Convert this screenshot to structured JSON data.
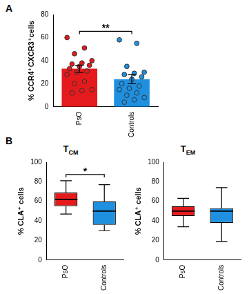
{
  "chart_data": [
    {
      "type": "bar",
      "panel_label": "A",
      "y_label": "% CCR4⁺CXCR3⁺cells",
      "categories": [
        "PsO",
        "Controls"
      ],
      "values": [
        33,
        24
      ],
      "errors": [
        3,
        4
      ],
      "points": [
        [
          60,
          51,
          46,
          40,
          38,
          37,
          36,
          35,
          33,
          31,
          30,
          28,
          22,
          20,
          15,
          14,
          12
        ],
        [
          58,
          55,
          35,
          30,
          29,
          28,
          26,
          24,
          20,
          18,
          16,
          15,
          12,
          10,
          8,
          6,
          4
        ]
      ],
      "colors": [
        "#e41a1c",
        "#1f8fe0"
      ],
      "ylim": [
        0,
        80
      ],
      "yticks": [
        0,
        20,
        40,
        60,
        80
      ],
      "grid": false,
      "annotations": [
        {
          "text": "**",
          "between": [
            "PsO",
            "Controls"
          ]
        }
      ]
    },
    {
      "type": "box",
      "panel_label": "B",
      "title": "TCM",
      "y_label": "% CLA⁺ cells",
      "categories": [
        "PsO",
        "Controls"
      ],
      "boxes": [
        {
          "min": 47,
          "q1": 55,
          "median": 62,
          "q3": 69,
          "max": 81
        },
        {
          "min": 30,
          "q1": 36,
          "median": 50,
          "q3": 60,
          "max": 77
        }
      ],
      "colors": [
        "#e41a1c",
        "#1f8fe0"
      ],
      "ylim": [
        0,
        100
      ],
      "yticks": [
        0,
        20,
        40,
        60,
        80,
        100
      ],
      "grid": false,
      "annotations": [
        {
          "text": "*",
          "between": [
            "PsO",
            "Controls"
          ]
        }
      ]
    },
    {
      "type": "box",
      "title": "TEM",
      "y_label": "% CLA⁺ cells",
      "categories": [
        "PsO",
        "Controls"
      ],
      "boxes": [
        {
          "min": 34,
          "q1": 45,
          "median": 50,
          "q3": 55,
          "max": 63
        },
        {
          "min": 19,
          "q1": 38,
          "median": 50,
          "q3": 53,
          "max": 74
        }
      ],
      "colors": [
        "#e41a1c",
        "#1f8fe0"
      ],
      "ylim": [
        0,
        100
      ],
      "yticks": [
        0,
        20,
        40,
        60,
        80,
        100
      ],
      "grid": false
    }
  ]
}
